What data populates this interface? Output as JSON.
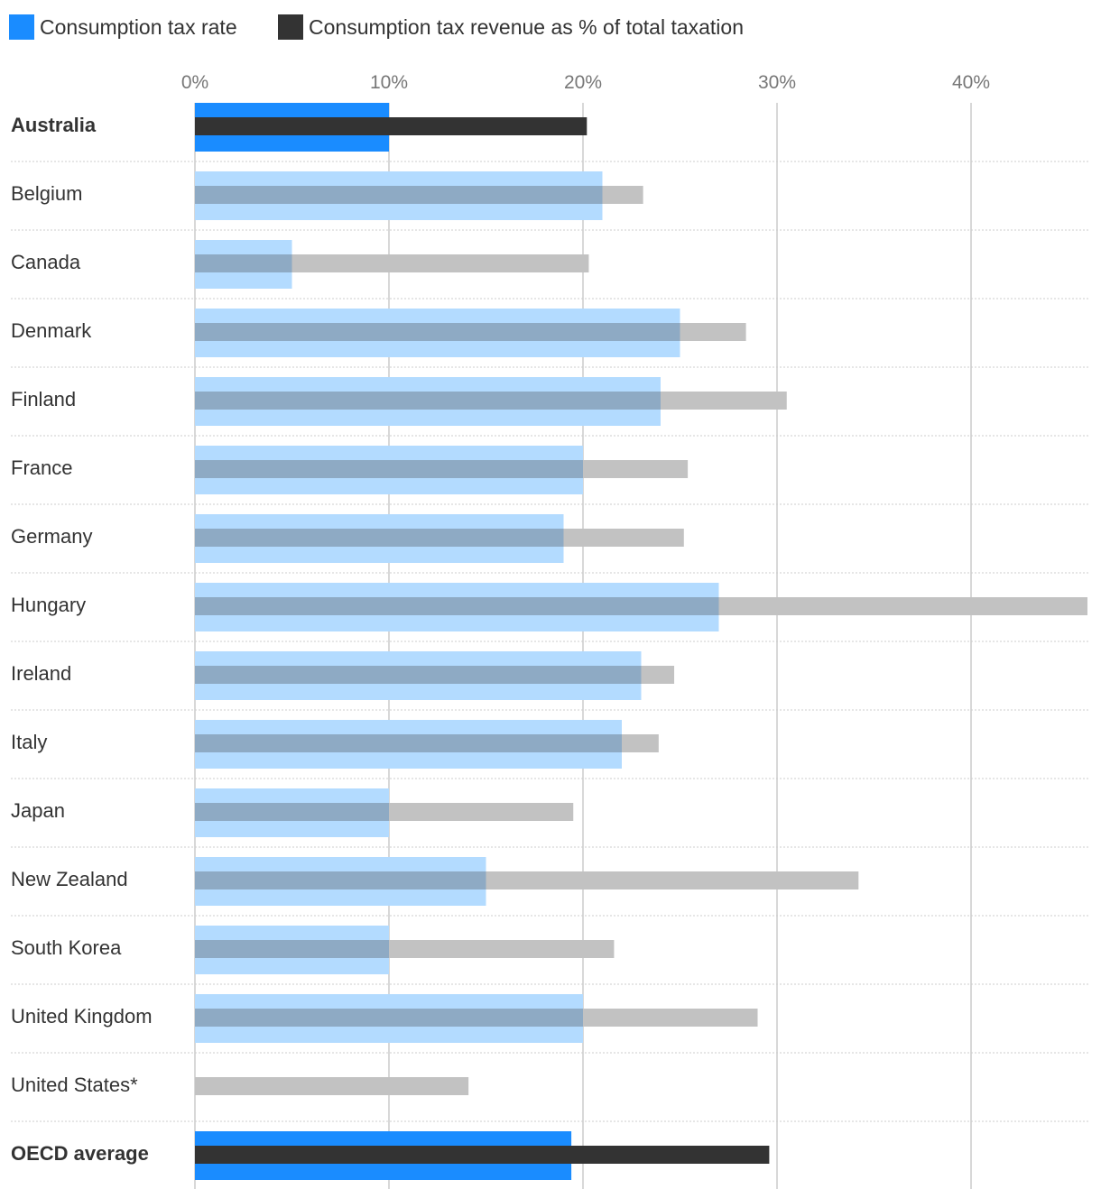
{
  "chart_data": {
    "type": "bar",
    "legend": [
      {
        "label": "Consumption tax rate",
        "color": "#1a8cff"
      },
      {
        "label": "Consumption tax revenue as % of total taxation",
        "color": "#333333"
      }
    ],
    "xticks": [
      "0%",
      "10%",
      "20%",
      "30%",
      "40%"
    ],
    "xlim": [
      0,
      46
    ],
    "categories": [
      "Australia",
      "Belgium",
      "Canada",
      "Denmark",
      "Finland",
      "France",
      "Germany",
      "Hungary",
      "Ireland",
      "Italy",
      "Japan",
      "New Zealand",
      "South Korea",
      "United Kingdom",
      "United States*",
      "OECD average"
    ],
    "highlighted": [
      "Australia",
      "OECD average"
    ],
    "series": [
      {
        "name": "Consumption tax rate",
        "values": [
          10,
          21,
          5,
          25,
          24,
          20,
          19,
          27,
          23,
          22,
          10,
          15,
          10,
          20,
          0,
          19.4
        ]
      },
      {
        "name": "Consumption tax revenue as % of total taxation",
        "values": [
          20.2,
          23.1,
          20.3,
          28.4,
          30.5,
          25.4,
          25.2,
          46,
          24.7,
          23.9,
          19.5,
          34.2,
          21.6,
          29,
          14.1,
          29.6
        ]
      }
    ],
    "colors": {
      "rate_highlight": "#1a8cff",
      "revenue_highlight": "#333333",
      "rate_muted": "#b3dbff",
      "revenue_muted": "#c2c2c2",
      "overlap_muted": "#8eaac4",
      "gridline": "#cccccc",
      "separator": "#cccccc"
    },
    "grid": true,
    "legend_position": "top-left"
  }
}
